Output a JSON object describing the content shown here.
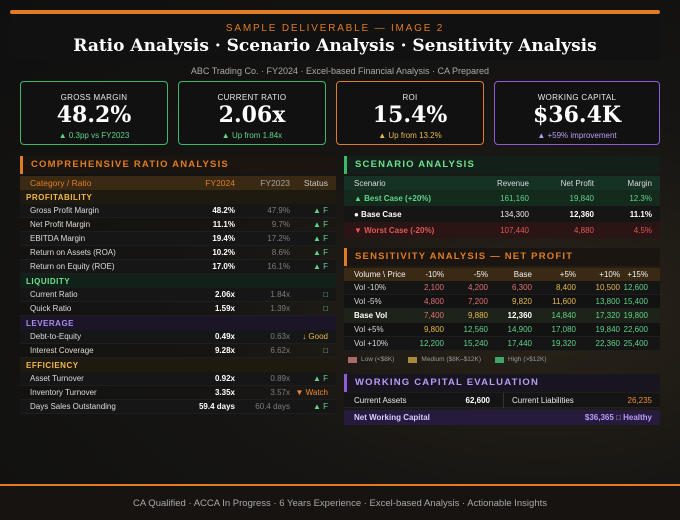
{
  "header": {
    "subtitle": "SAMPLE DELIVERABLE — IMAGE 2",
    "title": "Ratio Analysis · Scenario Analysis · Sensitivity Analysis",
    "meta": "ABC Trading Co. · FY2024 · Excel-based Financial Analysis · CA Prepared"
  },
  "kpis": [
    {
      "label": "GROSS MARGIN",
      "value": "48.2%",
      "change": "▲ 0.3pp vs FY2023"
    },
    {
      "label": "CURRENT RATIO",
      "value": "2.06x",
      "change": "▲ Up from 1.84x"
    },
    {
      "label": "ROI",
      "value": "15.4%",
      "change": "▲ Up from 13.2%"
    },
    {
      "label": "WORKING CAPITAL",
      "value": "$36.4K",
      "change": "▲ +59% improvement"
    }
  ],
  "ratio": {
    "title": "COMPREHENSIVE RATIO ANALYSIS",
    "headers": {
      "cat": "Category / Ratio",
      "fy24": "FY2024",
      "fy23": "FY2023",
      "status": "Status"
    },
    "sections": [
      {
        "name": "PROFITABILITY",
        "rows": [
          {
            "name": "Gross Profit Margin",
            "fy24": "48.2%",
            "fy23": "47.9%",
            "status": "▲ F"
          },
          {
            "name": "Net Profit Margin",
            "fy24": "11.1%",
            "fy23": "9.7%",
            "status": "▲ F"
          },
          {
            "name": "EBITDA Margin",
            "fy24": "19.4%",
            "fy23": "17.2%",
            "status": "▲ F"
          },
          {
            "name": "Return on Assets (ROA)",
            "fy24": "10.2%",
            "fy23": "8.6%",
            "status": "▲ F"
          },
          {
            "name": "Return on Equity (ROE)",
            "fy24": "17.0%",
            "fy23": "16.1%",
            "status": "▲ F"
          }
        ]
      },
      {
        "name": "LIQUIDITY",
        "rows": [
          {
            "name": "Current Ratio",
            "fy24": "2.06x",
            "fy23": "1.84x",
            "status": "□"
          },
          {
            "name": "Quick Ratio",
            "fy24": "1.59x",
            "fy23": "1.39x",
            "status": "□"
          }
        ]
      },
      {
        "name": "LEVERAGE",
        "rows": [
          {
            "name": "Debt-to-Equity",
            "fy24": "0.49x",
            "fy23": "0.63x",
            "status": "↓ Good"
          },
          {
            "name": "Interest Coverage",
            "fy24": "9.28x",
            "fy23": "6.62x",
            "status": "□"
          }
        ]
      },
      {
        "name": "EFFICIENCY",
        "rows": [
          {
            "name": "Asset Turnover",
            "fy24": "0.92x",
            "fy23": "0.89x",
            "status": "▲ F"
          },
          {
            "name": "Inventory Turnover",
            "fy24": "3.35x",
            "fy23": "3.57x",
            "status": "▼ Watch"
          },
          {
            "name": "Days Sales Outstanding",
            "fy24": "59.4 days",
            "fy23": "60.4 days",
            "status": "▲ F"
          }
        ]
      }
    ]
  },
  "scenario": {
    "title": "SCENARIO ANALYSIS",
    "headers": [
      "Scenario",
      "Revenue",
      "Net Profit",
      "Margin"
    ],
    "rows": [
      {
        "name": "▲ Best Case (+20%)",
        "revenue": "161,160",
        "profit": "19,840",
        "margin": "12.3%"
      },
      {
        "name": "● Base Case",
        "revenue": "134,300",
        "profit": "12,360",
        "margin": "11.1%"
      },
      {
        "name": "▼ Worst Case (-20%)",
        "revenue": "107,440",
        "profit": "4,880",
        "margin": "4.5%"
      }
    ]
  },
  "sensitivity": {
    "title": "SENSITIVITY ANALYSIS — NET PROFIT",
    "headers": [
      "Volume \\ Price",
      "-10%",
      "-5%",
      "Base",
      "+5%",
      "+10%",
      "+15%"
    ],
    "rows": [
      {
        "label": "Vol -10%",
        "values": [
          "2,100",
          "4,200",
          "6,300",
          "8,400",
          "10,500",
          "12,600"
        ]
      },
      {
        "label": "Vol -5%",
        "values": [
          "4,800",
          "7,200",
          "9,820",
          "11,600",
          "13,800",
          "15,400"
        ]
      },
      {
        "label": "Base Vol",
        "values": [
          "7,400",
          "9,880",
          "12,360",
          "14,840",
          "17,320",
          "19,800"
        ]
      },
      {
        "label": "Vol +5%",
        "values": [
          "9,800",
          "12,560",
          "14,900",
          "17,080",
          "19,840",
          "22,600"
        ]
      },
      {
        "label": "Vol +10%",
        "values": [
          "12,200",
          "15,240",
          "17,440",
          "19,320",
          "22,360",
          "25,400"
        ]
      }
    ],
    "legend": [
      {
        "label": "Low (<$8K)",
        "color": "#a86a6a"
      },
      {
        "label": "Medium ($8K–$12K)",
        "color": "#a88a3a"
      },
      {
        "label": "High (>$12K)",
        "color": "#3fa46a"
      }
    ]
  },
  "working_capital": {
    "title": "WORKING CAPITAL EVALUATION",
    "current_assets_label": "Current Assets",
    "current_assets": "62,600",
    "current_liabilities_label": "Current Liabilities",
    "current_liabilities": "26,235",
    "nwc_label": "Net Working Capital",
    "nwc_value": "$36,365 □ Healthy"
  },
  "footer": "CA Qualified · ACCA In Progress · 6 Years Experience · Excel-based Analysis · Actionable Insights",
  "colors": {
    "accent": "#e07c22",
    "green": "#3bb86a",
    "purple": "#8e5cd9"
  }
}
